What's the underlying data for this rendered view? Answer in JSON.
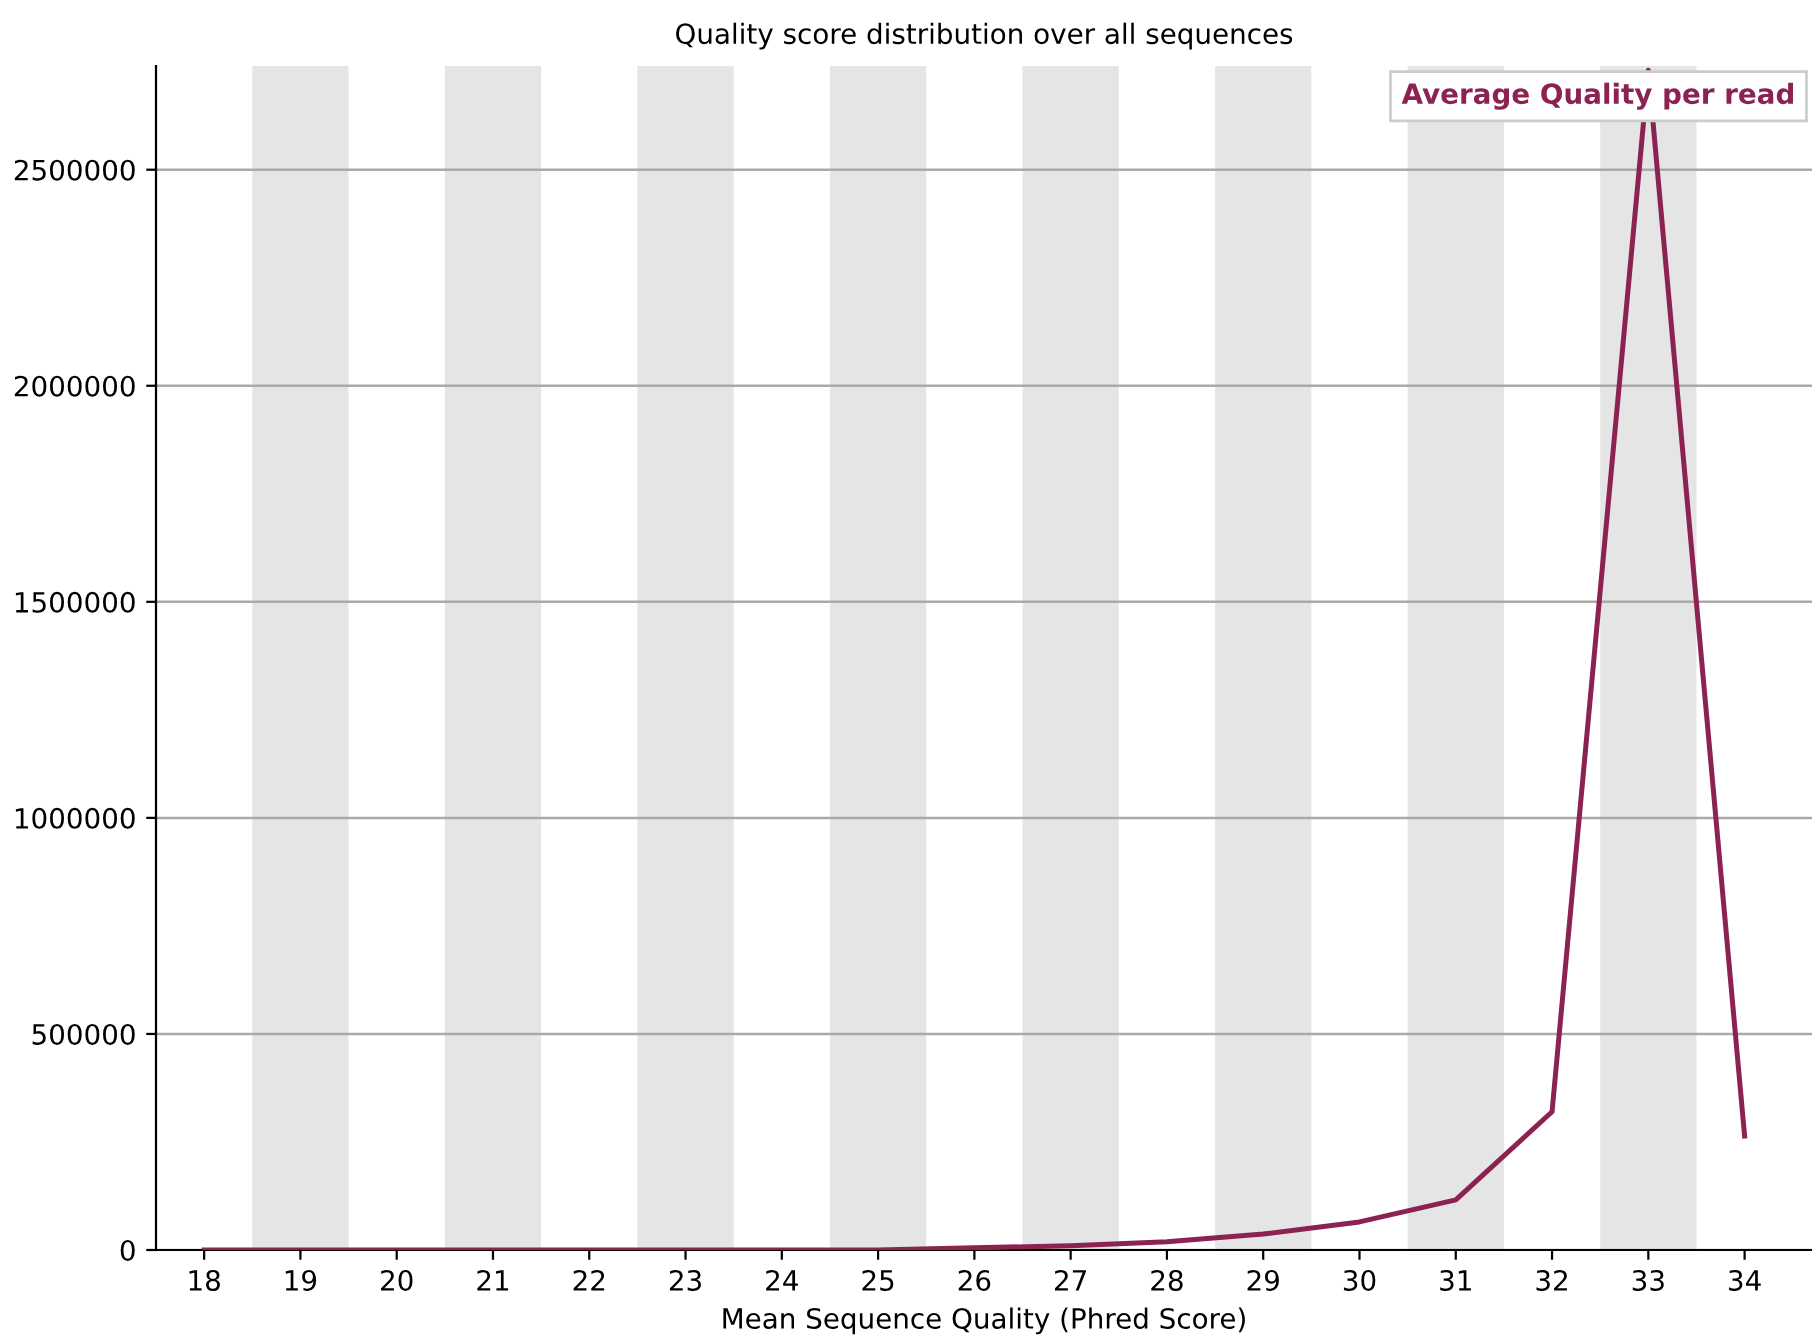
{
  "chart_data": {
    "type": "line",
    "title": "Quality score distribution over all sequences",
    "xlabel": "Mean Sequence Quality (Phred Score)",
    "x": [
      18,
      19,
      20,
      21,
      22,
      23,
      24,
      25,
      26,
      27,
      28,
      29,
      30,
      31,
      32,
      33,
      34
    ],
    "series": [
      {
        "name": "Average Quality per read",
        "color": "#8b2252",
        "values": [
          0,
          0,
          0,
          0,
          0,
          0,
          0,
          0,
          5000,
          10000,
          19000,
          37000,
          65000,
          116000,
          320000,
          2730000,
          264000
        ]
      }
    ],
    "xlim": [
      17.5,
      34.7
    ],
    "xticks": [
      18,
      19,
      20,
      21,
      22,
      23,
      24,
      25,
      26,
      27,
      28,
      29,
      30,
      31,
      32,
      33,
      34
    ],
    "ylim": [
      0,
      2740000
    ],
    "yticks": [
      0,
      500000,
      1000000,
      1500000,
      2000000,
      2500000
    ],
    "bands": [
      {
        "axis": "x",
        "from": 18.5,
        "to": 19.5,
        "color": "#e5e5e5"
      },
      {
        "axis": "x",
        "from": 20.5,
        "to": 21.5,
        "color": "#e5e5e5"
      },
      {
        "axis": "x",
        "from": 22.5,
        "to": 23.5,
        "color": "#e5e5e5"
      },
      {
        "axis": "x",
        "from": 24.5,
        "to": 25.5,
        "color": "#e5e5e5"
      },
      {
        "axis": "x",
        "from": 26.5,
        "to": 27.5,
        "color": "#e5e5e5"
      },
      {
        "axis": "x",
        "from": 28.5,
        "to": 29.5,
        "color": "#e5e5e5"
      },
      {
        "axis": "x",
        "from": 30.5,
        "to": 31.5,
        "color": "#e5e5e5"
      },
      {
        "axis": "x",
        "from": 32.5,
        "to": 33.5,
        "color": "#e5e5e5"
      }
    ],
    "grid": "y",
    "legend": "top right",
    "marker": "none",
    "line_style": "solid"
  }
}
